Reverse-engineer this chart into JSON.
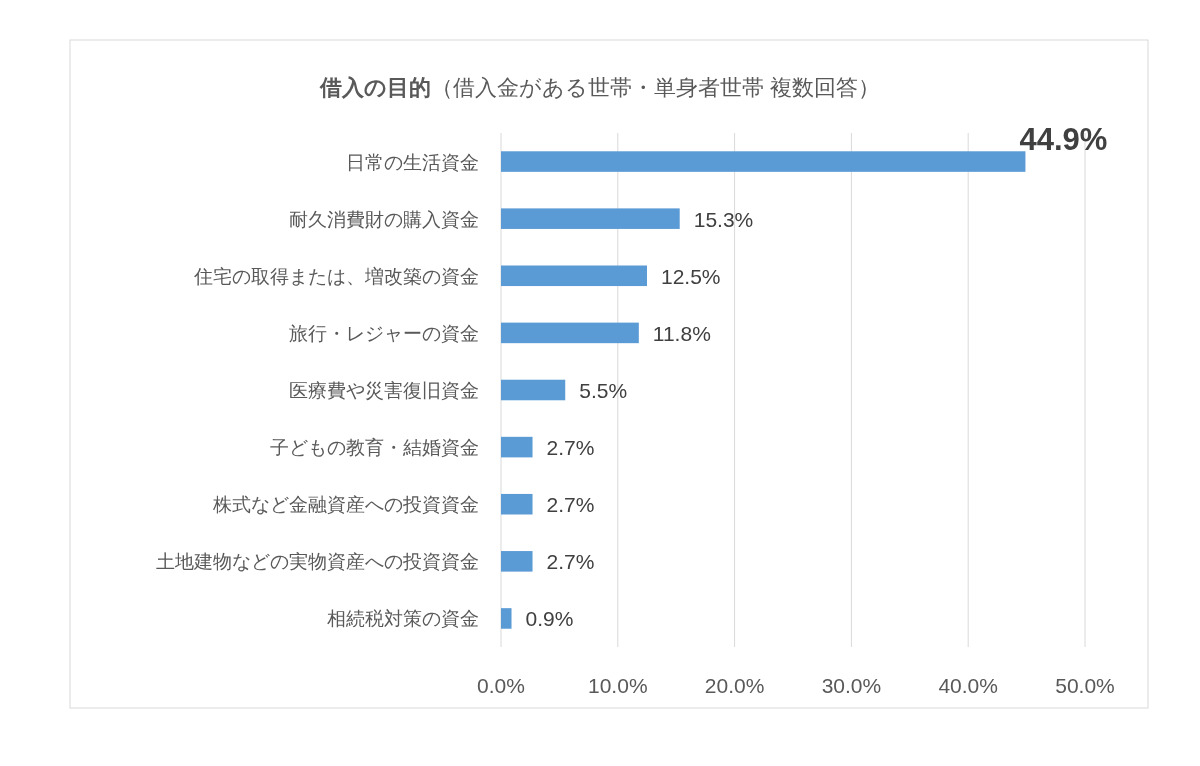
{
  "chart_data": {
    "type": "bar",
    "orientation": "horizontal",
    "title": "借入の目的",
    "subtitle": "（借入金がある世帯・単身者世帯 複数回答）",
    "categories": [
      "日常の生活資金",
      "耐久消費財の購入資金",
      "住宅の取得または、増改築の資金",
      "旅行・レジャーの資金",
      "医療費や災害復旧資金",
      "子どもの教育・結婚資金",
      "株式など金融資産への投資資金",
      "土地建物などの実物資産への投資資金",
      "相続税対策の資金"
    ],
    "values": [
      44.9,
      15.3,
      12.5,
      11.8,
      5.5,
      2.7,
      2.7,
      2.7,
      0.9
    ],
    "value_labels": [
      "44.9%",
      "15.3%",
      "12.5%",
      "11.8%",
      "5.5%",
      "2.7%",
      "2.7%",
      "2.7%",
      "0.9%"
    ],
    "color": "#5b9bd5",
    "xlim": [
      0,
      50
    ],
    "xticks": [
      {
        "value": 0,
        "label": "0.0%"
      },
      {
        "value": 10,
        "label": "10.0%"
      },
      {
        "value": 20,
        "label": "20.0%"
      },
      {
        "value": 30,
        "label": "30.0%"
      },
      {
        "value": 40,
        "label": "40.0%"
      },
      {
        "value": 50,
        "label": "50.0%"
      }
    ],
    "grid": "x"
  }
}
